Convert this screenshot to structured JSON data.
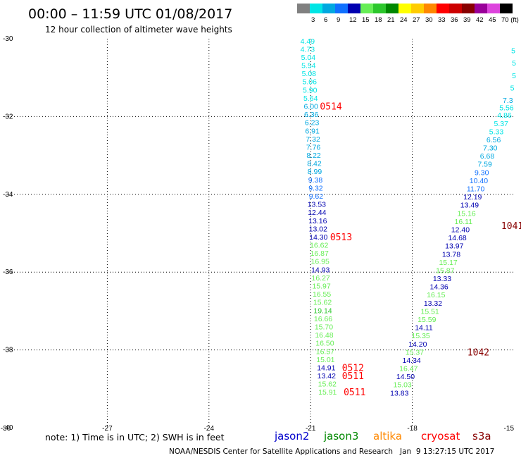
{
  "header": {
    "title": "00:00 – 11:59 UTC 01/08/2017",
    "subtitle": "12 hour collection of altimeter wave heights"
  },
  "color_scale": [
    {
      "label": "",
      "color": "#808080"
    },
    {
      "label": "3",
      "color": "#00e5e5"
    },
    {
      "label": "6",
      "color": "#00a8e0"
    },
    {
      "label": "9",
      "color": "#1070ff"
    },
    {
      "label": "12",
      "color": "#0000b0"
    },
    {
      "label": "15",
      "color": "#66ee55"
    },
    {
      "label": "18",
      "color": "#2cc72c"
    },
    {
      "label": "21",
      "color": "#008800"
    },
    {
      "label": "24",
      "color": "#ffff00"
    },
    {
      "label": "27",
      "color": "#ffcc00"
    },
    {
      "label": "30",
      "color": "#ff8800"
    },
    {
      "label": "33",
      "color": "#ff0000"
    },
    {
      "label": "36",
      "color": "#cc0000"
    },
    {
      "label": "39",
      "color": "#880000"
    },
    {
      "label": "42",
      "color": "#990099"
    },
    {
      "label": "45",
      "color": "#dd44dd"
    },
    {
      "label": "70 (ft)",
      "color": "#000000"
    }
  ],
  "chart_data": {
    "type": "scatter",
    "xlim": [
      -30,
      -15
    ],
    "ylim": [
      -40,
      -30
    ],
    "grid": true,
    "x_ticks": [
      {
        "value": -30,
        "label": "-30"
      },
      {
        "value": -27,
        "label": "-27"
      },
      {
        "value": -24,
        "label": "-24"
      },
      {
        "value": -21,
        "label": "-21"
      },
      {
        "value": -18,
        "label": "-18"
      },
      {
        "value": -15,
        "label": "-15"
      }
    ],
    "y_ticks": [
      {
        "value": -30,
        "label": "-30"
      },
      {
        "value": -32,
        "label": "-32"
      },
      {
        "value": -34,
        "label": "-34"
      },
      {
        "value": -36,
        "label": "-36"
      },
      {
        "value": -38,
        "label": "-38"
      },
      {
        "value": -40,
        "label": "-40"
      }
    ],
    "series": [
      {
        "name": "jason3",
        "color": "#008800",
        "points": [
          {
            "x": -21.09,
            "y": -30.05,
            "label": "4.49"
          },
          {
            "x": -21.09,
            "y": -30.26,
            "label": "4.73"
          },
          {
            "x": -21.07,
            "y": -30.47,
            "label": "5.04"
          },
          {
            "x": -21.06,
            "y": -30.68,
            "label": "5.54"
          },
          {
            "x": -21.05,
            "y": -30.89,
            "label": "5.08"
          },
          {
            "x": -21.03,
            "y": -31.1,
            "label": "5.06"
          },
          {
            "x": -21.02,
            "y": -31.31,
            "label": "5.90"
          },
          {
            "x": -21.0,
            "y": -31.52,
            "label": "5.64"
          },
          {
            "x": -20.99,
            "y": -31.73,
            "label": "6.00"
          },
          {
            "x": -20.98,
            "y": -31.94,
            "label": "6.36"
          },
          {
            "x": -20.96,
            "y": -32.15,
            "label": "6.23"
          },
          {
            "x": -20.95,
            "y": -32.36,
            "label": "6.91"
          },
          {
            "x": -20.93,
            "y": -32.57,
            "label": "7.32"
          },
          {
            "x": -20.92,
            "y": -32.78,
            "label": "7.76"
          },
          {
            "x": -20.91,
            "y": -32.99,
            "label": "8.22"
          },
          {
            "x": -20.89,
            "y": -33.2,
            "label": "8.42"
          },
          {
            "x": -20.88,
            "y": -33.41,
            "label": "8.99"
          },
          {
            "x": -20.86,
            "y": -33.62,
            "label": "9.38"
          },
          {
            "x": -20.85,
            "y": -33.83,
            "label": "9.32"
          },
          {
            "x": -20.84,
            "y": -34.04,
            "label": "9.62"
          },
          {
            "x": -20.82,
            "y": -34.25,
            "label": "13.53"
          },
          {
            "x": -20.81,
            "y": -34.46,
            "label": "12.44"
          },
          {
            "x": -20.79,
            "y": -34.67,
            "label": "13.16"
          },
          {
            "x": -20.78,
            "y": -34.88,
            "label": "13.02"
          },
          {
            "x": -20.77,
            "y": -35.09,
            "label": "14.30"
          },
          {
            "x": -20.75,
            "y": -35.3,
            "label": "16.62"
          },
          {
            "x": -20.74,
            "y": -35.51,
            "label": "16.87"
          },
          {
            "x": -20.72,
            "y": -35.72,
            "label": "16.95"
          },
          {
            "x": -20.71,
            "y": -35.93,
            "label": "14.93"
          },
          {
            "x": -20.7,
            "y": -36.14,
            "label": "16.27"
          },
          {
            "x": -20.68,
            "y": -36.35,
            "label": "15.97"
          },
          {
            "x": -20.67,
            "y": -36.56,
            "label": "16.55"
          },
          {
            "x": -20.65,
            "y": -36.77,
            "label": "15.62"
          },
          {
            "x": -20.64,
            "y": -36.98,
            "label": "19.14"
          },
          {
            "x": -20.63,
            "y": -37.19,
            "label": "16.66"
          },
          {
            "x": -20.61,
            "y": -37.4,
            "label": "15.70"
          },
          {
            "x": -20.6,
            "y": -37.61,
            "label": "16.48"
          },
          {
            "x": -20.58,
            "y": -37.82,
            "label": "16.50"
          },
          {
            "x": -20.57,
            "y": -38.03,
            "label": "16.57"
          },
          {
            "x": -20.56,
            "y": -38.24,
            "label": "15.01"
          },
          {
            "x": -20.54,
            "y": -38.45,
            "label": "14.91"
          },
          {
            "x": -20.53,
            "y": -38.66,
            "label": "13.42"
          },
          {
            "x": -20.51,
            "y": -38.87,
            "label": "15.62"
          },
          {
            "x": -20.5,
            "y": -39.08,
            "label": "15.91"
          }
        ]
      },
      {
        "name": "jason3",
        "color": "#008800",
        "points": [
          {
            "x": -15.02,
            "y": -30.3,
            "label": "5"
          },
          {
            "x": -15.0,
            "y": -30.62,
            "label": "5"
          },
          {
            "x": -15.0,
            "y": -30.94,
            "label": "5"
          },
          {
            "x": -15.05,
            "y": -31.26,
            "label": "5"
          },
          {
            "x": -15.18,
            "y": -31.58,
            "label": "7.3"
          },
          {
            "x": -15.22,
            "y": -31.77,
            "label": "5.56"
          },
          {
            "x": -15.28,
            "y": -31.96,
            "label": "4.86"
          },
          {
            "x": -15.38,
            "y": -32.17,
            "label": "5.37"
          },
          {
            "x": -15.52,
            "y": -32.38,
            "label": "5.33"
          },
          {
            "x": -15.6,
            "y": -32.59,
            "label": "6.56"
          },
          {
            "x": -15.7,
            "y": -32.8,
            "label": "7.30"
          },
          {
            "x": -15.79,
            "y": -33.01,
            "label": "6.68"
          },
          {
            "x": -15.86,
            "y": -33.22,
            "label": "7.59"
          },
          {
            "x": -15.95,
            "y": -33.43,
            "label": "9.30"
          },
          {
            "x": -16.04,
            "y": -33.64,
            "label": "10.40"
          },
          {
            "x": -16.13,
            "y": -33.85,
            "label": "11.70"
          },
          {
            "x": -16.22,
            "y": -34.06,
            "label": "12.19"
          },
          {
            "x": -16.31,
            "y": -34.27,
            "label": "13.49"
          },
          {
            "x": -16.4,
            "y": -34.48,
            "label": "15.16"
          },
          {
            "x": -16.49,
            "y": -34.69,
            "label": "16.11"
          },
          {
            "x": -16.58,
            "y": -34.9,
            "label": "12.40"
          },
          {
            "x": -16.67,
            "y": -35.11,
            "label": "14.68"
          },
          {
            "x": -16.76,
            "y": -35.32,
            "label": "13.97"
          },
          {
            "x": -16.85,
            "y": -35.53,
            "label": "13.78"
          },
          {
            "x": -16.94,
            "y": -35.74,
            "label": "15.17"
          },
          {
            "x": -17.03,
            "y": -35.95,
            "label": "15.87"
          },
          {
            "x": -17.12,
            "y": -36.16,
            "label": "13.33"
          },
          {
            "x": -17.21,
            "y": -36.37,
            "label": "14.36"
          },
          {
            "x": -17.3,
            "y": -36.58,
            "label": "16.15"
          },
          {
            "x": -17.39,
            "y": -36.79,
            "label": "13.32"
          },
          {
            "x": -17.48,
            "y": -37.0,
            "label": "15.51"
          },
          {
            "x": -17.57,
            "y": -37.21,
            "label": "15.59"
          },
          {
            "x": -17.66,
            "y": -37.42,
            "label": "14.11"
          },
          {
            "x": -17.75,
            "y": -37.63,
            "label": "15.35"
          },
          {
            "x": -17.84,
            "y": -37.84,
            "label": "14.20"
          },
          {
            "x": -17.93,
            "y": -38.05,
            "label": "15.37"
          },
          {
            "x": -18.02,
            "y": -38.26,
            "label": "14.34"
          },
          {
            "x": -18.11,
            "y": -38.47,
            "label": "16.47"
          },
          {
            "x": -18.2,
            "y": -38.68,
            "label": "14.50"
          },
          {
            "x": -18.29,
            "y": -38.89,
            "label": "15.03"
          },
          {
            "x": -18.38,
            "y": -39.1,
            "label": "13.83"
          }
        ]
      }
    ],
    "pass_labels": [
      {
        "x": -20.4,
        "y": -31.73,
        "label": "0514",
        "color": "#ff0000"
      },
      {
        "x": -20.1,
        "y": -35.09,
        "label": "0513",
        "color": "#ff0000"
      },
      {
        "x": -19.75,
        "y": -38.45,
        "label": "0512",
        "color": "#ff0000"
      },
      {
        "x": -19.75,
        "y": -38.66,
        "label": "0511",
        "color": "#ff0000"
      },
      {
        "x": -19.7,
        "y": -39.08,
        "label": "0511",
        "color": "#ff0000"
      },
      {
        "x": -15.05,
        "y": -34.8,
        "label": "1041",
        "color": "#880000"
      },
      {
        "x": -16.05,
        "y": -38.05,
        "label": "1042",
        "color": "#880000"
      }
    ]
  },
  "footer": {
    "note": "note: 1) Time is in UTC; 2) SWH is in feet",
    "legend": [
      {
        "label": "jason2",
        "color": "#0000cc"
      },
      {
        "label": "jason3",
        "color": "#008800"
      },
      {
        "label": "altika",
        "color": "#ff8800"
      },
      {
        "label": "cryosat",
        "color": "#ff0000"
      },
      {
        "label": "s3a",
        "color": "#880000"
      }
    ],
    "credit": "NOAA/NESDIS Center for Satellite Applications and Research   Jan  9 13:27:15 UTC 2017"
  }
}
